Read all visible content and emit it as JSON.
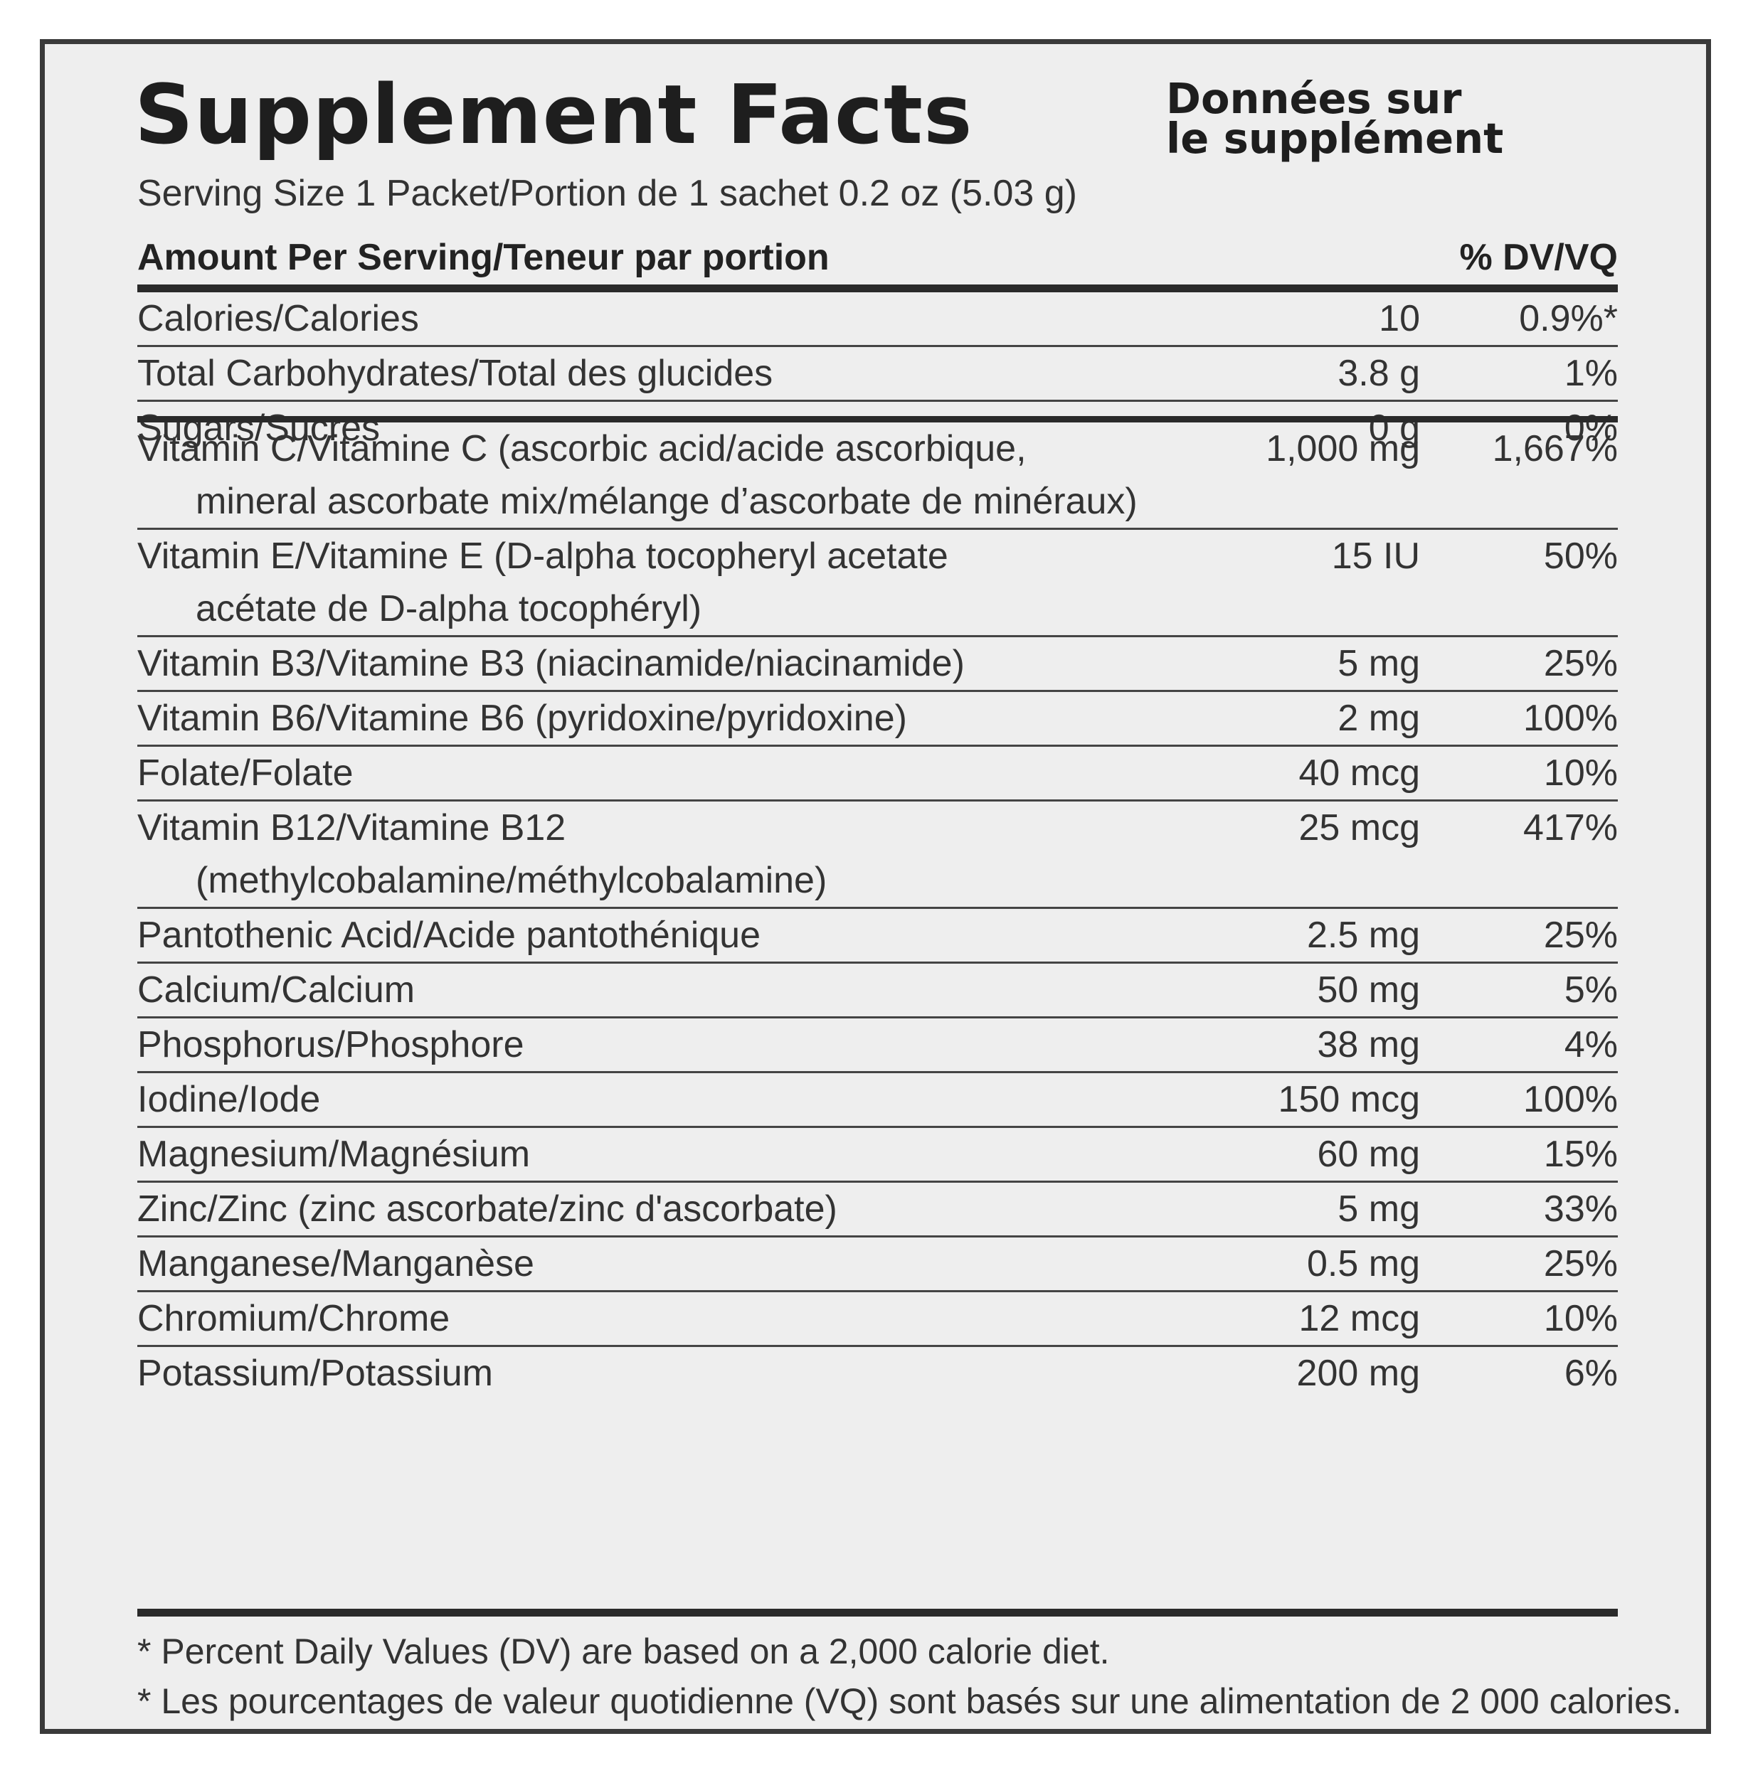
{
  "header": {
    "title_en": "Supplement Facts",
    "title_fr_line1": "Données sur",
    "title_fr_line2": "le supplément",
    "serving_size": "Serving Size 1 Packet/Portion de 1 sachet 0.2 oz (5.03 g)",
    "amount_per_serving": "Amount Per Serving/Teneur par portion",
    "dv_header": "% DV/VQ"
  },
  "macros": [
    {
      "name": "Calories/Calories",
      "amount": "10",
      "dv": "0.9%*"
    },
    {
      "name": "Total Carbohydrates/Total des glucides",
      "amount": "3.8 g",
      "dv": "1%"
    },
    {
      "name": "Sugars/Sucres",
      "amount": "0 g",
      "dv": "0%"
    }
  ],
  "nutrients": [
    {
      "name": "Vitamin C/Vitamine C (ascorbic acid/acide ascorbique,",
      "sub": "mineral ascorbate mix/mélange d’ascorbate de minéraux)",
      "amount": "1,000 mg",
      "dv": "1,667%"
    },
    {
      "name": "Vitamin E/Vitamine E (D-alpha tocopheryl acetate",
      "sub": "acétate de D-alpha tocophéryl)",
      "amount": "15 IU",
      "dv": "50%"
    },
    {
      "name": "Vitamin B3/Vitamine B3 (niacinamide/niacinamide)",
      "amount": "5 mg",
      "dv": "25%"
    },
    {
      "name": "Vitamin B6/Vitamine B6 (pyridoxine/pyridoxine)",
      "amount": "2 mg",
      "dv": "100%"
    },
    {
      "name": "Folate/Folate",
      "amount": "40 mcg",
      "dv": "10%"
    },
    {
      "name": "Vitamin B12/Vitamine B12",
      "sub": "(methylcobalamine/méthylcobalamine)",
      "amount": "25 mcg",
      "dv": "417%"
    },
    {
      "name": "Pantothenic Acid/Acide pantothénique",
      "amount": "2.5 mg",
      "dv": "25%"
    },
    {
      "name": "Calcium/Calcium",
      "amount": "50 mg",
      "dv": "5%"
    },
    {
      "name": "Phosphorus/Phosphore",
      "amount": "38 mg",
      "dv": "4%"
    },
    {
      "name": "Iodine/Iode",
      "amount": "150 mcg",
      "dv": "100%"
    },
    {
      "name": "Magnesium/Magnésium",
      "amount": "60 mg",
      "dv": "15%"
    },
    {
      "name": "Zinc/Zinc (zinc ascorbate/zinc d'ascorbate)",
      "amount": "5 mg",
      "dv": "33%"
    },
    {
      "name": "Manganese/Manganèse",
      "amount": "0.5 mg",
      "dv": "25%"
    },
    {
      "name": "Chromium/Chrome",
      "amount": "12 mcg",
      "dv": "10%"
    },
    {
      "name": "Potassium/Potassium",
      "amount": "200 mg",
      "dv": "6%"
    }
  ],
  "footnotes": [
    "* Percent Daily Values (DV) are based on a 2,000 calorie diet.",
    "* Les pourcentages de valeur quotidienne (VQ) sont basés sur une alimentation de 2 000 calories."
  ]
}
